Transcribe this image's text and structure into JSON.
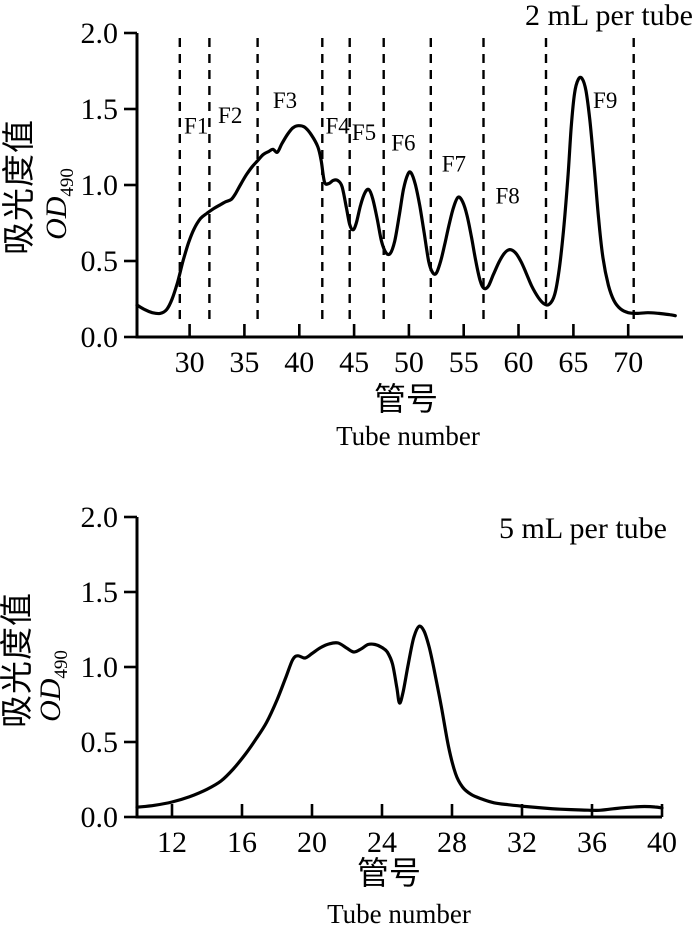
{
  "page": {
    "background": "#ffffff",
    "ink": "#000000"
  },
  "chart_data": [
    {
      "type": "line",
      "title": "2 mL per tube",
      "ylabel_cn": "吸光度值",
      "ylabel_en": "OD",
      "ylabel_sub": "490",
      "xlabel_cn": "管号",
      "xlabel_en": "Tube number",
      "xlim": [
        25.2,
        75
      ],
      "ylim": [
        0,
        2.0
      ],
      "x_ticks": [
        30,
        35,
        40,
        45,
        50,
        55,
        60,
        65,
        70
      ],
      "y_ticks": [
        "2.0",
        "1.5",
        "1.0",
        "0.5",
        "0.0"
      ],
      "grid": false,
      "fraction_boundaries": [
        29.1,
        31.8,
        36.2,
        42.1,
        44.6,
        47.7,
        52.0,
        56.8,
        62.5,
        70.5
      ],
      "fraction_labels": [
        {
          "label": "F1",
          "x": 30.6,
          "od": 1.39
        },
        {
          "label": "F2",
          "x": 33.7,
          "od": 1.46
        },
        {
          "label": "F3",
          "x": 38.7,
          "od": 1.56
        },
        {
          "label": "F4",
          "x": 43.5,
          "od": 1.39
        },
        {
          "label": "F5",
          "x": 45.9,
          "od": 1.35
        },
        {
          "label": "F6",
          "x": 49.5,
          "od": 1.28
        },
        {
          "label": "F7",
          "x": 54.1,
          "od": 1.14
        },
        {
          "label": "F8",
          "x": 59.0,
          "od": 0.93
        },
        {
          "label": "F9",
          "x": 67.9,
          "od": 1.56
        }
      ],
      "series": [
        {
          "name": "elution-profile-2mL",
          "points": [
            [
              25.2,
              0.21
            ],
            [
              25.9,
              0.18
            ],
            [
              26.6,
              0.16
            ],
            [
              27.3,
              0.155
            ],
            [
              27.9,
              0.18
            ],
            [
              28.4,
              0.25
            ],
            [
              28.9,
              0.36
            ],
            [
              29.4,
              0.5
            ],
            [
              29.9,
              0.62
            ],
            [
              30.4,
              0.71
            ],
            [
              31.0,
              0.78
            ],
            [
              31.6,
              0.815
            ],
            [
              32.2,
              0.845
            ],
            [
              32.8,
              0.87
            ],
            [
              33.3,
              0.89
            ],
            [
              33.8,
              0.905
            ],
            [
              34.2,
              0.945
            ],
            [
              34.7,
              1.01
            ],
            [
              35.2,
              1.07
            ],
            [
              35.7,
              1.12
            ],
            [
              36.2,
              1.16
            ],
            [
              36.7,
              1.2
            ],
            [
              37.2,
              1.22
            ],
            [
              37.6,
              1.235
            ],
            [
              38.0,
              1.215
            ],
            [
              38.4,
              1.27
            ],
            [
              38.9,
              1.33
            ],
            [
              39.4,
              1.375
            ],
            [
              39.9,
              1.39
            ],
            [
              40.5,
              1.38
            ],
            [
              41.1,
              1.33
            ],
            [
              41.7,
              1.25
            ],
            [
              42.0,
              1.16
            ],
            [
              42.3,
              1.02
            ],
            [
              42.7,
              1.01
            ],
            [
              43.1,
              1.03
            ],
            [
              43.5,
              1.03
            ],
            [
              43.9,
              0.99
            ],
            [
              44.3,
              0.85
            ],
            [
              44.6,
              0.74
            ],
            [
              44.9,
              0.705
            ],
            [
              45.2,
              0.75
            ],
            [
              45.6,
              0.87
            ],
            [
              46.0,
              0.95
            ],
            [
              46.35,
              0.97
            ],
            [
              46.7,
              0.91
            ],
            [
              47.1,
              0.78
            ],
            [
              47.5,
              0.63
            ],
            [
              47.9,
              0.555
            ],
            [
              48.3,
              0.55
            ],
            [
              48.7,
              0.63
            ],
            [
              49.1,
              0.79
            ],
            [
              49.5,
              0.97
            ],
            [
              49.9,
              1.07
            ],
            [
              50.2,
              1.08
            ],
            [
              50.6,
              1.0
            ],
            [
              51.0,
              0.86
            ],
            [
              51.4,
              0.68
            ],
            [
              51.8,
              0.5
            ],
            [
              52.15,
              0.425
            ],
            [
              52.5,
              0.42
            ],
            [
              52.9,
              0.5
            ],
            [
              53.3,
              0.62
            ],
            [
              53.7,
              0.75
            ],
            [
              54.1,
              0.86
            ],
            [
              54.5,
              0.92
            ],
            [
              54.9,
              0.89
            ],
            [
              55.3,
              0.8
            ],
            [
              55.7,
              0.66
            ],
            [
              56.1,
              0.5
            ],
            [
              56.5,
              0.37
            ],
            [
              56.85,
              0.32
            ],
            [
              57.25,
              0.335
            ],
            [
              57.7,
              0.41
            ],
            [
              58.2,
              0.49
            ],
            [
              58.7,
              0.55
            ],
            [
              59.2,
              0.575
            ],
            [
              59.7,
              0.555
            ],
            [
              60.2,
              0.5
            ],
            [
              60.7,
              0.42
            ],
            [
              61.2,
              0.335
            ],
            [
              61.8,
              0.26
            ],
            [
              62.3,
              0.22
            ],
            [
              62.8,
              0.215
            ],
            [
              63.3,
              0.28
            ],
            [
              63.7,
              0.44
            ],
            [
              64.1,
              0.7
            ],
            [
              64.5,
              1.05
            ],
            [
              64.8,
              1.38
            ],
            [
              65.1,
              1.6
            ],
            [
              65.45,
              1.695
            ],
            [
              65.8,
              1.7
            ],
            [
              66.15,
              1.62
            ],
            [
              66.5,
              1.43
            ],
            [
              66.9,
              1.12
            ],
            [
              67.3,
              0.78
            ],
            [
              67.7,
              0.52
            ],
            [
              68.2,
              0.34
            ],
            [
              68.7,
              0.24
            ],
            [
              69.3,
              0.185
            ],
            [
              70.0,
              0.16
            ],
            [
              70.8,
              0.155
            ],
            [
              71.8,
              0.16
            ],
            [
              72.8,
              0.155
            ],
            [
              73.8,
              0.147
            ],
            [
              74.3,
              0.14
            ]
          ]
        }
      ]
    },
    {
      "type": "line",
      "title": "5 mL per tube",
      "ylabel_cn": "吸光度值",
      "ylabel_en": "OD",
      "ylabel_sub": "490",
      "xlabel_cn": "管号",
      "xlabel_en": "Tube number",
      "xlim": [
        10,
        40
      ],
      "ylim": [
        0,
        2.0
      ],
      "x_ticks": [
        12,
        16,
        20,
        24,
        28,
        32,
        36,
        40
      ],
      "y_ticks": [
        "2.0",
        "1.5",
        "1.0",
        "0.5",
        "0.0"
      ],
      "grid": false,
      "fraction_boundaries": [],
      "fraction_labels": [],
      "series": [
        {
          "name": "elution-profile-5mL",
          "points": [
            [
              10.0,
              0.065
            ],
            [
              11.0,
              0.078
            ],
            [
              12.0,
              0.1
            ],
            [
              13.0,
              0.135
            ],
            [
              14.0,
              0.185
            ],
            [
              14.8,
              0.24
            ],
            [
              15.5,
              0.32
            ],
            [
              16.2,
              0.42
            ],
            [
              16.8,
              0.52
            ],
            [
              17.4,
              0.63
            ],
            [
              18.0,
              0.78
            ],
            [
              18.5,
              0.93
            ],
            [
              18.9,
              1.05
            ],
            [
              19.2,
              1.075
            ],
            [
              19.6,
              1.06
            ],
            [
              20.0,
              1.09
            ],
            [
              20.5,
              1.13
            ],
            [
              21.0,
              1.155
            ],
            [
              21.5,
              1.16
            ],
            [
              22.0,
              1.125
            ],
            [
              22.4,
              1.1
            ],
            [
              22.8,
              1.12
            ],
            [
              23.2,
              1.15
            ],
            [
              23.6,
              1.15
            ],
            [
              24.0,
              1.13
            ],
            [
              24.3,
              1.1
            ],
            [
              24.6,
              1.02
            ],
            [
              24.85,
              0.86
            ],
            [
              25.0,
              0.76
            ],
            [
              25.2,
              0.83
            ],
            [
              25.5,
              1.02
            ],
            [
              25.8,
              1.19
            ],
            [
              26.1,
              1.27
            ],
            [
              26.4,
              1.24
            ],
            [
              26.7,
              1.13
            ],
            [
              27.0,
              0.97
            ],
            [
              27.4,
              0.73
            ],
            [
              27.8,
              0.47
            ],
            [
              28.2,
              0.29
            ],
            [
              28.6,
              0.2
            ],
            [
              29.1,
              0.15
            ],
            [
              29.7,
              0.12
            ],
            [
              30.4,
              0.095
            ],
            [
              31.2,
              0.082
            ],
            [
              32.2,
              0.07
            ],
            [
              33.2,
              0.06
            ],
            [
              34.2,
              0.052
            ],
            [
              35.4,
              0.047
            ],
            [
              36.4,
              0.045
            ],
            [
              37.2,
              0.055
            ],
            [
              38.1,
              0.065
            ],
            [
              39.0,
              0.07
            ],
            [
              39.6,
              0.067
            ],
            [
              40.0,
              0.06
            ]
          ]
        }
      ]
    }
  ]
}
